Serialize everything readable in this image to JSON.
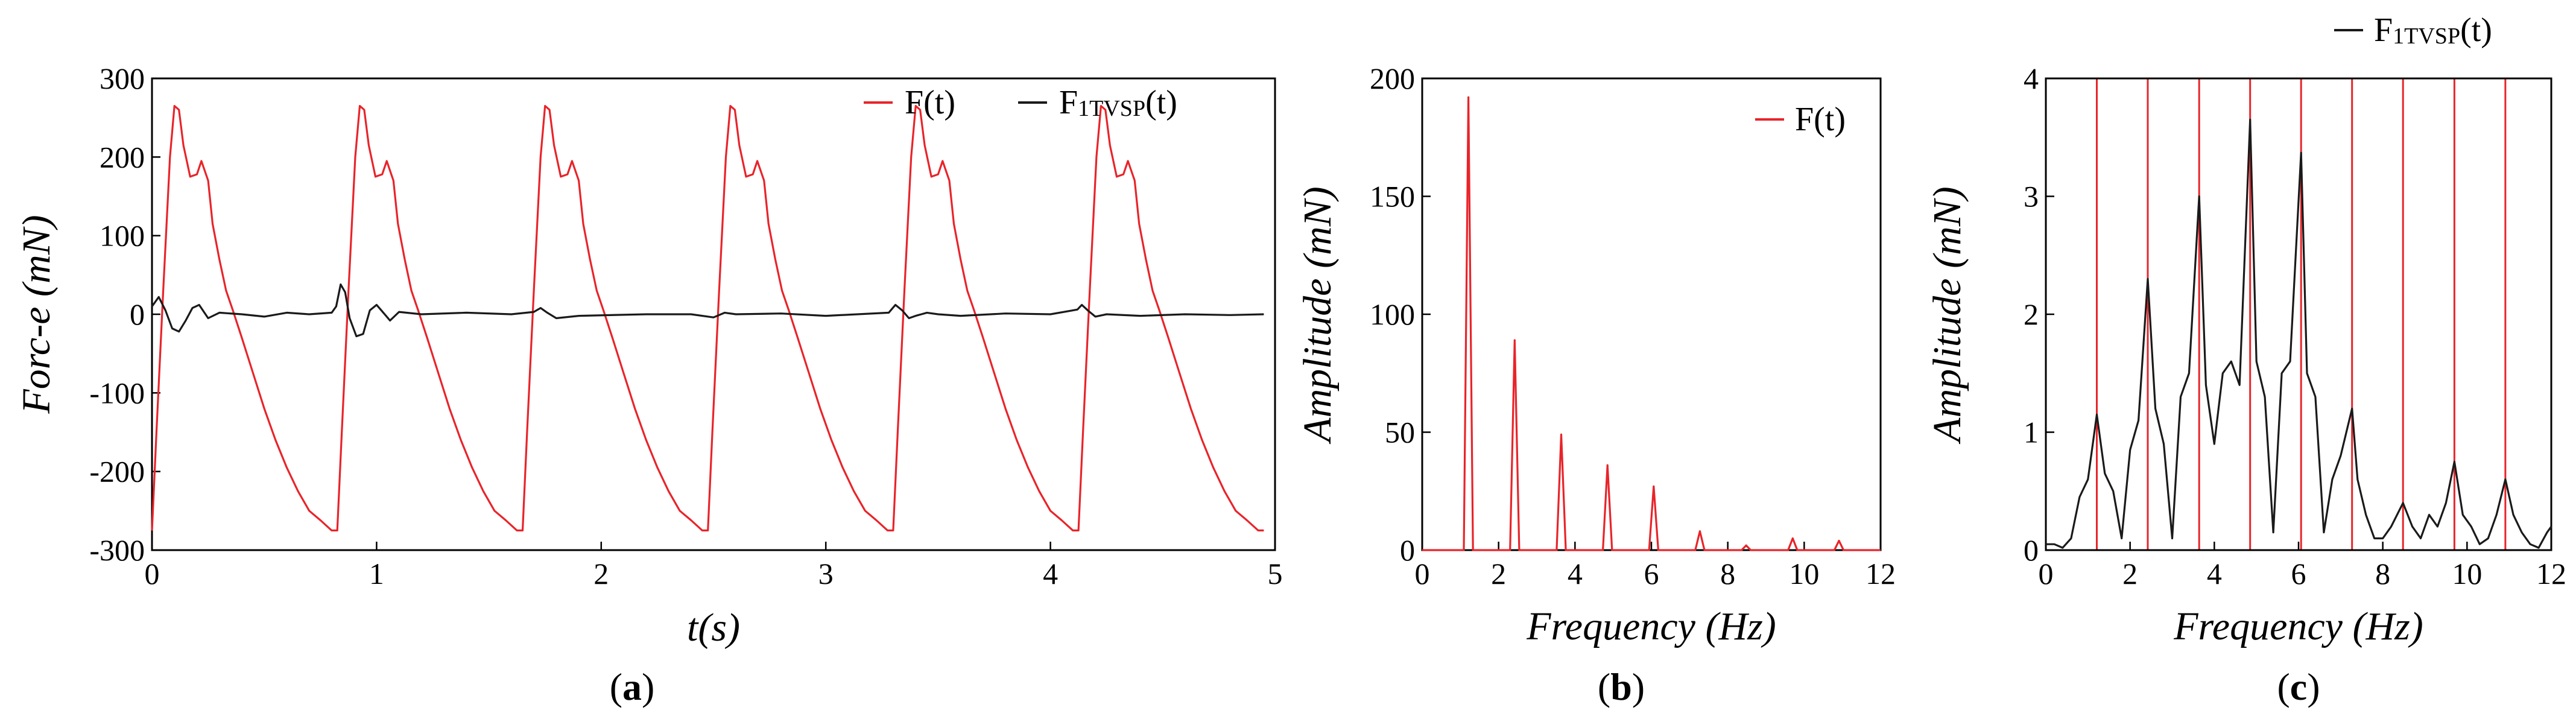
{
  "figure": {
    "colors": {
      "force": "#e8242a",
      "tvsp": "#1a1a1a",
      "axis": "#000000",
      "frame": "#000000"
    }
  },
  "chart_data": [
    {
      "id": "a",
      "type": "line",
      "caption_open": "(",
      "caption_letter": "a",
      "caption_close": ")",
      "title": "",
      "xlabel": "t(s)",
      "ylabel": "Forc-e (mN)",
      "xlim": [
        0,
        5
      ],
      "ylim": [
        -300,
        300
      ],
      "xticks": [
        0,
        1,
        2,
        3,
        4,
        5
      ],
      "yticks": [
        -300,
        -200,
        -100,
        0,
        100,
        200,
        300
      ],
      "legend_position": "top-right",
      "period": 0.825,
      "series": [
        {
          "name": "F(t)",
          "sub": "",
          "color": "#e8242a",
          "cycle_x": [
            0,
            0.02,
            0.05,
            0.08,
            0.1,
            0.12,
            0.14,
            0.17,
            0.2,
            0.22,
            0.25,
            0.27,
            0.3,
            0.33,
            0.36,
            0.4,
            0.45,
            0.5,
            0.55,
            0.6,
            0.65,
            0.7,
            0.75,
            0.8,
            0.825
          ],
          "cycle_y": [
            -275,
            -150,
            30,
            200,
            265,
            260,
            215,
            175,
            178,
            195,
            170,
            115,
            70,
            30,
            5,
            -30,
            -75,
            -120,
            -160,
            -195,
            -225,
            -250,
            -262,
            -275,
            -275
          ],
          "cycles": 6
        },
        {
          "name": "F",
          "sub": "1TVSP",
          "suffix": "(t)",
          "color": "#1a1a1a",
          "x": [
            0,
            0.03,
            0.06,
            0.09,
            0.12,
            0.15,
            0.18,
            0.21,
            0.25,
            0.3,
            0.4,
            0.5,
            0.6,
            0.7,
            0.8,
            0.82,
            0.84,
            0.86,
            0.88,
            0.91,
            0.94,
            0.97,
            1.0,
            1.03,
            1.06,
            1.1,
            1.2,
            1.4,
            1.6,
            1.7,
            1.73,
            1.76,
            1.8,
            1.9,
            2.2,
            2.4,
            2.5,
            2.55,
            2.6,
            2.8,
            3.0,
            3.28,
            3.31,
            3.34,
            3.37,
            3.4,
            3.45,
            3.5,
            3.6,
            3.8,
            4.0,
            4.12,
            4.14,
            4.17,
            4.2,
            4.25,
            4.4,
            4.6,
            4.8,
            4.95
          ],
          "y": [
            10,
            22,
            5,
            -18,
            -22,
            -8,
            8,
            12,
            -5,
            2,
            0,
            -3,
            2,
            0,
            2,
            10,
            38,
            28,
            -5,
            -28,
            -25,
            5,
            12,
            2,
            -8,
            3,
            0,
            2,
            0,
            3,
            8,
            2,
            -5,
            -2,
            0,
            0,
            -4,
            2,
            0,
            1,
            -2,
            2,
            12,
            5,
            -5,
            -2,
            2,
            0,
            -2,
            1,
            0,
            6,
            12,
            4,
            -3,
            0,
            -2,
            0,
            -1,
            0
          ]
        }
      ]
    },
    {
      "id": "b",
      "type": "line",
      "caption_open": "(",
      "caption_letter": "b",
      "caption_close": ")",
      "title": "",
      "xlabel": "Frequency (Hz)",
      "ylabel": "Amplitude (mN)",
      "xlim": [
        0,
        12
      ],
      "ylim": [
        0,
        200
      ],
      "xticks": [
        0,
        2,
        4,
        6,
        8,
        10,
        12
      ],
      "yticks": [
        0,
        50,
        100,
        150,
        200
      ],
      "legend_position": "top-right",
      "series": [
        {
          "name": "F(t)",
          "sub": "",
          "color": "#e8242a",
          "peaks": [
            {
              "f": 1.21,
              "a": 192
            },
            {
              "f": 2.42,
              "a": 89
            },
            {
              "f": 3.64,
              "a": 49
            },
            {
              "f": 4.85,
              "a": 36
            },
            {
              "f": 6.06,
              "a": 27
            },
            {
              "f": 7.27,
              "a": 8
            },
            {
              "f": 8.48,
              "a": 2
            },
            {
              "f": 9.7,
              "a": 5
            },
            {
              "f": 10.91,
              "a": 4
            }
          ]
        }
      ]
    },
    {
      "id": "c",
      "type": "line",
      "caption_open": "(",
      "caption_letter": "c",
      "caption_close": ")",
      "title": "",
      "xlabel": "Frequency (Hz)",
      "ylabel": "Amplitude (mN)",
      "xlim": [
        0,
        12
      ],
      "ylim": [
        0,
        4
      ],
      "xticks": [
        0,
        2,
        4,
        6,
        8,
        10,
        12
      ],
      "yticks": [
        0,
        1,
        2,
        3,
        4
      ],
      "legend_position": "above-top-right",
      "harmonic_lines": [
        1.21,
        2.42,
        3.64,
        4.85,
        6.06,
        7.27,
        8.48,
        9.7,
        10.91
      ],
      "series": [
        {
          "name": "F",
          "sub": "1TVSP",
          "suffix": "(t)",
          "color": "#1a1a1a",
          "x": [
            0,
            0.2,
            0.4,
            0.6,
            0.8,
            1.0,
            1.21,
            1.4,
            1.6,
            1.8,
            2.0,
            2.2,
            2.42,
            2.6,
            2.8,
            3.0,
            3.2,
            3.4,
            3.64,
            3.8,
            4.0,
            4.2,
            4.4,
            4.6,
            4.85,
            5.0,
            5.2,
            5.4,
            5.6,
            5.8,
            6.06,
            6.2,
            6.4,
            6.6,
            6.8,
            7.0,
            7.27,
            7.4,
            7.6,
            7.8,
            8.0,
            8.2,
            8.48,
            8.7,
            8.9,
            9.1,
            9.3,
            9.5,
            9.7,
            9.9,
            10.1,
            10.3,
            10.5,
            10.7,
            10.91,
            11.1,
            11.3,
            11.5,
            11.7,
            11.9,
            12.0
          ],
          "y": [
            0.05,
            0.05,
            0.02,
            0.1,
            0.45,
            0.6,
            1.15,
            0.65,
            0.5,
            0.1,
            0.85,
            1.1,
            2.3,
            1.2,
            0.9,
            0.1,
            1.3,
            1.5,
            3.0,
            1.4,
            0.9,
            1.5,
            1.6,
            1.4,
            3.65,
            1.6,
            1.3,
            0.15,
            1.5,
            1.6,
            3.37,
            1.5,
            1.3,
            0.15,
            0.6,
            0.8,
            1.2,
            0.6,
            0.3,
            0.1,
            0.1,
            0.2,
            0.4,
            0.2,
            0.1,
            0.3,
            0.2,
            0.4,
            0.75,
            0.3,
            0.2,
            0.05,
            0.1,
            0.3,
            0.6,
            0.3,
            0.15,
            0.05,
            0.02,
            0.15,
            0.2
          ]
        }
      ]
    }
  ]
}
